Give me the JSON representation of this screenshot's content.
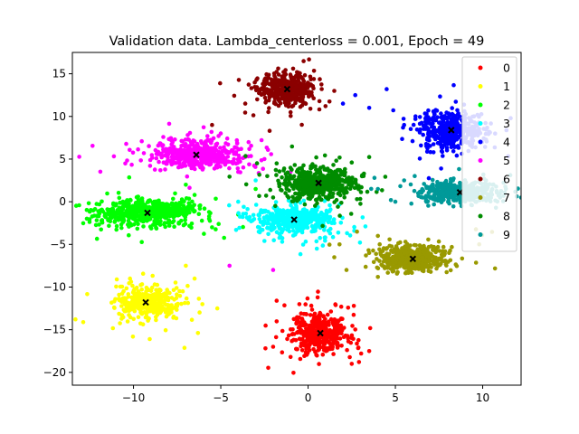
{
  "chart_data": {
    "type": "scatter",
    "title": "Validation data. Lambda_centerloss = 0.001, Epoch = 49",
    "xlabel": "",
    "ylabel": "",
    "xlim": [
      -13.5,
      12.2
    ],
    "ylim": [
      -21.5,
      17.5
    ],
    "xticks": [
      -10,
      -5,
      0,
      5,
      10
    ],
    "yticks": [
      -20,
      -15,
      -10,
      -5,
      0,
      5,
      10,
      15
    ],
    "grid": false,
    "legend_position": "top-right",
    "center_marker_color": "#000000",
    "series": [
      {
        "name": "0",
        "color": "#ff0000",
        "center": [
          0.7,
          -15.4
        ],
        "spread": [
          0.75,
          1.1
        ],
        "count": 420,
        "outliers": [
          [
            -1.8,
            -11.6
          ],
          [
            -0.4,
            -13.1
          ],
          [
            1.9,
            -12.3
          ],
          [
            3.5,
            -17.5
          ],
          [
            -2.0,
            -17.0
          ],
          [
            2.5,
            -19.0
          ],
          [
            -0.5,
            -12.0
          ]
        ]
      },
      {
        "name": "1",
        "color": "#ffff00",
        "center": [
          -9.3,
          -11.8
        ],
        "spread": [
          0.8,
          0.9
        ],
        "count": 380,
        "outliers": [
          [
            -7.0,
            -7.5
          ],
          [
            -5.2,
            -12.5
          ],
          [
            -10.2,
            -9.0
          ],
          [
            -6.5,
            -9.0
          ],
          [
            -8.0,
            -13.2
          ]
        ]
      },
      {
        "name": "2",
        "color": "#00ff00",
        "center": [
          -9.2,
          -1.3
        ],
        "spread": [
          1.3,
          0.7
        ],
        "count": 620,
        "outliers": [
          [
            -6.5,
            0.8
          ],
          [
            -5.5,
            -3.0
          ],
          [
            -4.0,
            -1.5
          ],
          [
            -7.0,
            2.0
          ],
          [
            -3.0,
            1.5
          ]
        ]
      },
      {
        "name": "3",
        "color": "#00ffff",
        "center": [
          -0.8,
          -2.1
        ],
        "spread": [
          1.1,
          0.8
        ],
        "count": 420,
        "outliers": [
          [
            -3.0,
            2.5
          ],
          [
            1.8,
            -0.3
          ],
          [
            -2.5,
            -4.6
          ],
          [
            0.5,
            -5.5
          ],
          [
            -4.0,
            0.0
          ]
        ]
      },
      {
        "name": "4",
        "color": "#0000ff",
        "center": [
          8.2,
          8.4
        ],
        "spread": [
          0.9,
          1.1
        ],
        "count": 400,
        "outliers": [
          [
            2.7,
            12.5
          ],
          [
            3.5,
            11.0
          ],
          [
            4.5,
            13.2
          ],
          [
            5.5,
            9.0
          ],
          [
            2.0,
            11.5
          ]
        ]
      },
      {
        "name": "5",
        "color": "#ff00ff",
        "center": [
          -6.4,
          5.5
        ],
        "spread": [
          1.2,
          0.7
        ],
        "count": 520,
        "outliers": [
          [
            -4.0,
            3.5
          ],
          [
            -2.5,
            5.0
          ],
          [
            -5.0,
            8.0
          ],
          [
            -2.0,
            -8.0
          ],
          [
            -4.5,
            -7.5
          ],
          [
            -1.0,
            3.5
          ]
        ]
      },
      {
        "name": "6",
        "color": "#8b0000",
        "center": [
          -1.2,
          13.2
        ],
        "spread": [
          0.8,
          0.9
        ],
        "count": 400,
        "outliers": [
          [
            -3.6,
            11.5
          ],
          [
            1.0,
            11.2
          ],
          [
            -5.5,
            9.0
          ],
          [
            1.5,
            13.0
          ],
          [
            -1.0,
            10.5
          ]
        ]
      },
      {
        "name": "7",
        "color": "#999900",
        "center": [
          6.0,
          -6.7
        ],
        "spread": [
          0.9,
          0.8
        ],
        "count": 470,
        "outliers": [
          [
            2.8,
            -3.5
          ],
          [
            1.8,
            -5.0
          ],
          [
            2.2,
            -8.0
          ],
          [
            4.0,
            -4.0
          ],
          [
            1.5,
            -6.5
          ],
          [
            3.5,
            -6.0
          ]
        ]
      },
      {
        "name": "8",
        "color": "#008c00",
        "center": [
          0.6,
          2.2
        ],
        "spread": [
          1.0,
          0.9
        ],
        "count": 520,
        "outliers": [
          [
            -1.8,
            4.5
          ],
          [
            2.8,
            0.3
          ],
          [
            3.2,
            3.3
          ],
          [
            -2.0,
            0.5
          ],
          [
            2.5,
            4.6
          ]
        ]
      },
      {
        "name": "9",
        "color": "#009999",
        "center": [
          8.7,
          1.1
        ],
        "spread": [
          1.1,
          0.6
        ],
        "count": 430,
        "outliers": [
          [
            4.0,
            1.5
          ],
          [
            5.0,
            0.0
          ],
          [
            3.8,
            2.8
          ],
          [
            5.5,
            2.5
          ],
          [
            11.0,
            0.5
          ]
        ]
      }
    ]
  }
}
